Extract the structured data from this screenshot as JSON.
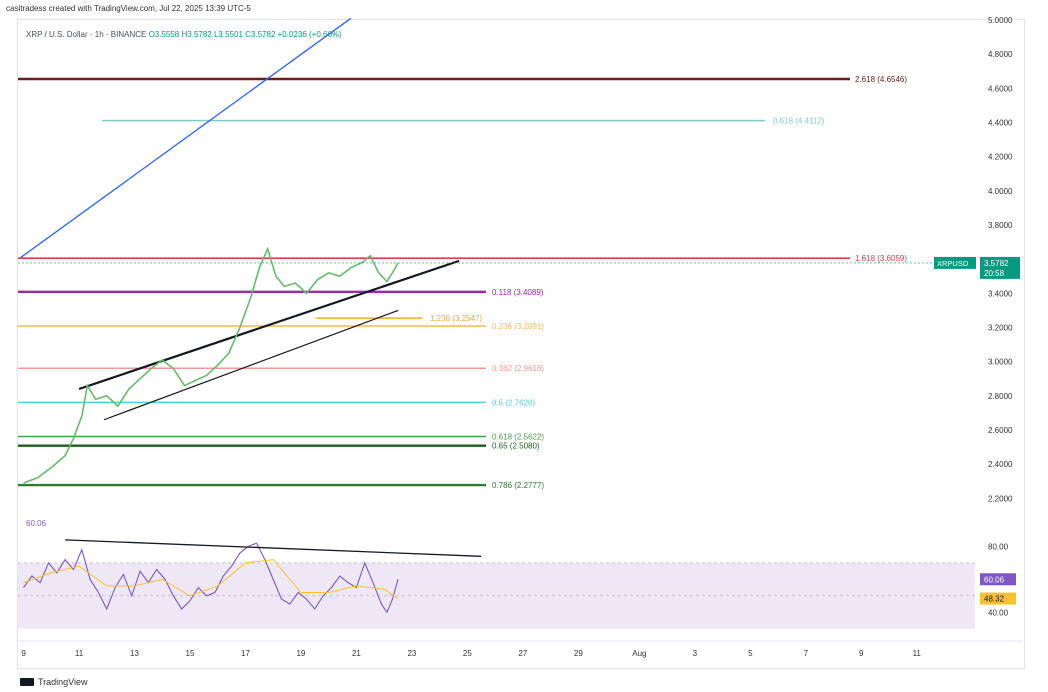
{
  "credit": "casitradess created with TradingView.com, Jul 22, 2025 13:39 UTC-5",
  "legend": {
    "symbol": "XRP / U.S. Dollar · 1h · BINANCE",
    "open": "O3.5558",
    "high": "H3.5782",
    "low": "L3.5501",
    "close": "C3.5782",
    "change": "+0.0236 (+0.66%)"
  },
  "footer_brand": "TradingView",
  "colors": {
    "candles": "#ffffff",
    "price_line": "#66bb6a",
    "rsi": "#7e57c2",
    "rsi_ma": "#fbc02d",
    "rsi_band": "#ede7f6",
    "blue_trend": "#2962ff",
    "price_badge": "#089981",
    "rsi_badge": "#7e57c2",
    "rsi_ma_badge": "#fbc02d"
  },
  "chart_data": {
    "type": "line",
    "symbol_badge": "XRPUSD",
    "last_price": "3.5782",
    "countdown": "20:58",
    "x_ticks": [
      "9",
      "11",
      "13",
      "15",
      "17",
      "19",
      "21",
      "23",
      "25",
      "27",
      "29",
      "Aug",
      "3",
      "5",
      "7",
      "9",
      "11"
    ],
    "price_ticks": [
      "4.8000",
      "4.6000",
      "4.4000",
      "4.2000",
      "4.0000",
      "3.8000",
      "3.4000",
      "3.2000",
      "3.0000",
      "2.8000",
      "2.6000",
      "2.4000",
      "2.2000"
    ],
    "price_top_label": "5.0000",
    "rsi_ticks": [
      "80.00",
      "40.00"
    ],
    "rsi_value_label": "60.06",
    "rsi_ma_label": "48.32",
    "fib_levels": [
      {
        "label": "2.618 (4.6546)",
        "price": 4.6546,
        "color": "#6d1b1b"
      },
      {
        "label": "0.618 (4.4112)",
        "price": 4.4112,
        "color": "#80cbc4"
      },
      {
        "label": "1.618 (3.6059)",
        "price": 3.6059,
        "color": "#e53950"
      },
      {
        "label": "0.118 (3.4089)",
        "price": 3.4089,
        "color": "#9c27b0"
      },
      {
        "label": "1.236 (3.2547)",
        "price": 3.2547,
        "color": "#f9a825"
      },
      {
        "label": "0.236 (3.2091)",
        "price": 3.2091,
        "color": "#ffb74d"
      },
      {
        "label": "0.382 (2.9618)",
        "price": 2.9618,
        "color": "#ef9a9a"
      },
      {
        "label": "0.5 (2.7620)",
        "price": 2.762,
        "color": "#4dd0e1"
      },
      {
        "label": "0.618 (2.5622)",
        "price": 2.5622,
        "color": "#43a047"
      },
      {
        "label": "0.65 (2.5080)",
        "price": 2.508,
        "color": "#1b5e20"
      },
      {
        "label": "0.786 (2.2777)",
        "price": 2.2777,
        "color": "#2e7d32"
      }
    ],
    "price_series": [
      [
        9.0,
        2.29
      ],
      [
        9.5,
        2.32
      ],
      [
        10.0,
        2.38
      ],
      [
        10.5,
        2.45
      ],
      [
        10.8,
        2.55
      ],
      [
        11.1,
        2.68
      ],
      [
        11.3,
        2.86
      ],
      [
        11.6,
        2.78
      ],
      [
        12.0,
        2.8
      ],
      [
        12.4,
        2.74
      ],
      [
        12.8,
        2.84
      ],
      [
        13.2,
        2.9
      ],
      [
        13.6,
        2.96
      ],
      [
        14.0,
        3.01
      ],
      [
        14.4,
        2.96
      ],
      [
        14.8,
        2.86
      ],
      [
        15.2,
        2.89
      ],
      [
        15.6,
        2.92
      ],
      [
        16.0,
        2.98
      ],
      [
        16.4,
        3.05
      ],
      [
        16.8,
        3.2
      ],
      [
        17.2,
        3.38
      ],
      [
        17.5,
        3.55
      ],
      [
        17.8,
        3.66
      ],
      [
        18.1,
        3.5
      ],
      [
        18.4,
        3.44
      ],
      [
        18.8,
        3.46
      ],
      [
        19.2,
        3.4
      ],
      [
        19.6,
        3.48
      ],
      [
        20.0,
        3.52
      ],
      [
        20.4,
        3.5
      ],
      [
        20.8,
        3.55
      ],
      [
        21.2,
        3.58
      ],
      [
        21.5,
        3.62
      ],
      [
        21.8,
        3.52
      ],
      [
        22.1,
        3.47
      ],
      [
        22.3,
        3.52
      ],
      [
        22.5,
        3.5782
      ]
    ],
    "rsi_series": [
      [
        9.0,
        55
      ],
      [
        9.3,
        62
      ],
      [
        9.6,
        58
      ],
      [
        9.9,
        70
      ],
      [
        10.2,
        64
      ],
      [
        10.5,
        72
      ],
      [
        10.8,
        66
      ],
      [
        11.1,
        78
      ],
      [
        11.4,
        60
      ],
      [
        11.7,
        52
      ],
      [
        12.0,
        42
      ],
      [
        12.3,
        55
      ],
      [
        12.6,
        63
      ],
      [
        12.9,
        50
      ],
      [
        13.2,
        65
      ],
      [
        13.5,
        58
      ],
      [
        13.8,
        66
      ],
      [
        14.1,
        60
      ],
      [
        14.4,
        50
      ],
      [
        14.7,
        42
      ],
      [
        15.0,
        47
      ],
      [
        15.3,
        55
      ],
      [
        15.6,
        50
      ],
      [
        15.9,
        52
      ],
      [
        16.2,
        62
      ],
      [
        16.5,
        68
      ],
      [
        16.8,
        76
      ],
      [
        17.1,
        80
      ],
      [
        17.4,
        82
      ],
      [
        17.7,
        72
      ],
      [
        18.0,
        60
      ],
      [
        18.3,
        48
      ],
      [
        18.6,
        45
      ],
      [
        18.9,
        52
      ],
      [
        19.2,
        48
      ],
      [
        19.5,
        42
      ],
      [
        19.8,
        50
      ],
      [
        20.1,
        55
      ],
      [
        20.4,
        62
      ],
      [
        20.7,
        58
      ],
      [
        21.0,
        55
      ],
      [
        21.3,
        70
      ],
      [
        21.6,
        58
      ],
      [
        21.9,
        45
      ],
      [
        22.1,
        40
      ],
      [
        22.3,
        48
      ],
      [
        22.5,
        60.06
      ]
    ],
    "rsi_ma_series": [
      [
        9.0,
        58
      ],
      [
        10.0,
        64
      ],
      [
        11.0,
        68
      ],
      [
        12.0,
        56
      ],
      [
        13.0,
        56
      ],
      [
        14.0,
        60
      ],
      [
        15.0,
        50
      ],
      [
        16.0,
        56
      ],
      [
        17.0,
        70
      ],
      [
        18.0,
        72
      ],
      [
        19.0,
        52
      ],
      [
        20.0,
        52
      ],
      [
        21.0,
        56
      ],
      [
        22.0,
        54
      ],
      [
        22.5,
        48.32
      ]
    ],
    "rsi_trendline": [
      [
        10.5,
        84
      ],
      [
        25.5,
        74
      ]
    ],
    "rsi_bands": {
      "upper": 70,
      "middle": 50,
      "lower": 30
    },
    "price_range": [
      2.12,
      5.0
    ],
    "rsi_range": [
      28,
      90
    ],
    "x_range": [
      8.8,
      43.3
    ],
    "trendlines": [
      {
        "from": [
          8.9,
          3.61
        ],
        "to": [
          20.8,
          5.01
        ],
        "color": "#2962ff",
        "width": 1.3
      },
      {
        "from": [
          11.0,
          2.84
        ],
        "to": [
          24.7,
          3.59
        ],
        "color": "#131722",
        "width": 2.2
      },
      {
        "from": [
          11.9,
          2.66
        ],
        "to": [
          22.5,
          3.3
        ],
        "color": "#131722",
        "width": 1.2
      }
    ]
  }
}
